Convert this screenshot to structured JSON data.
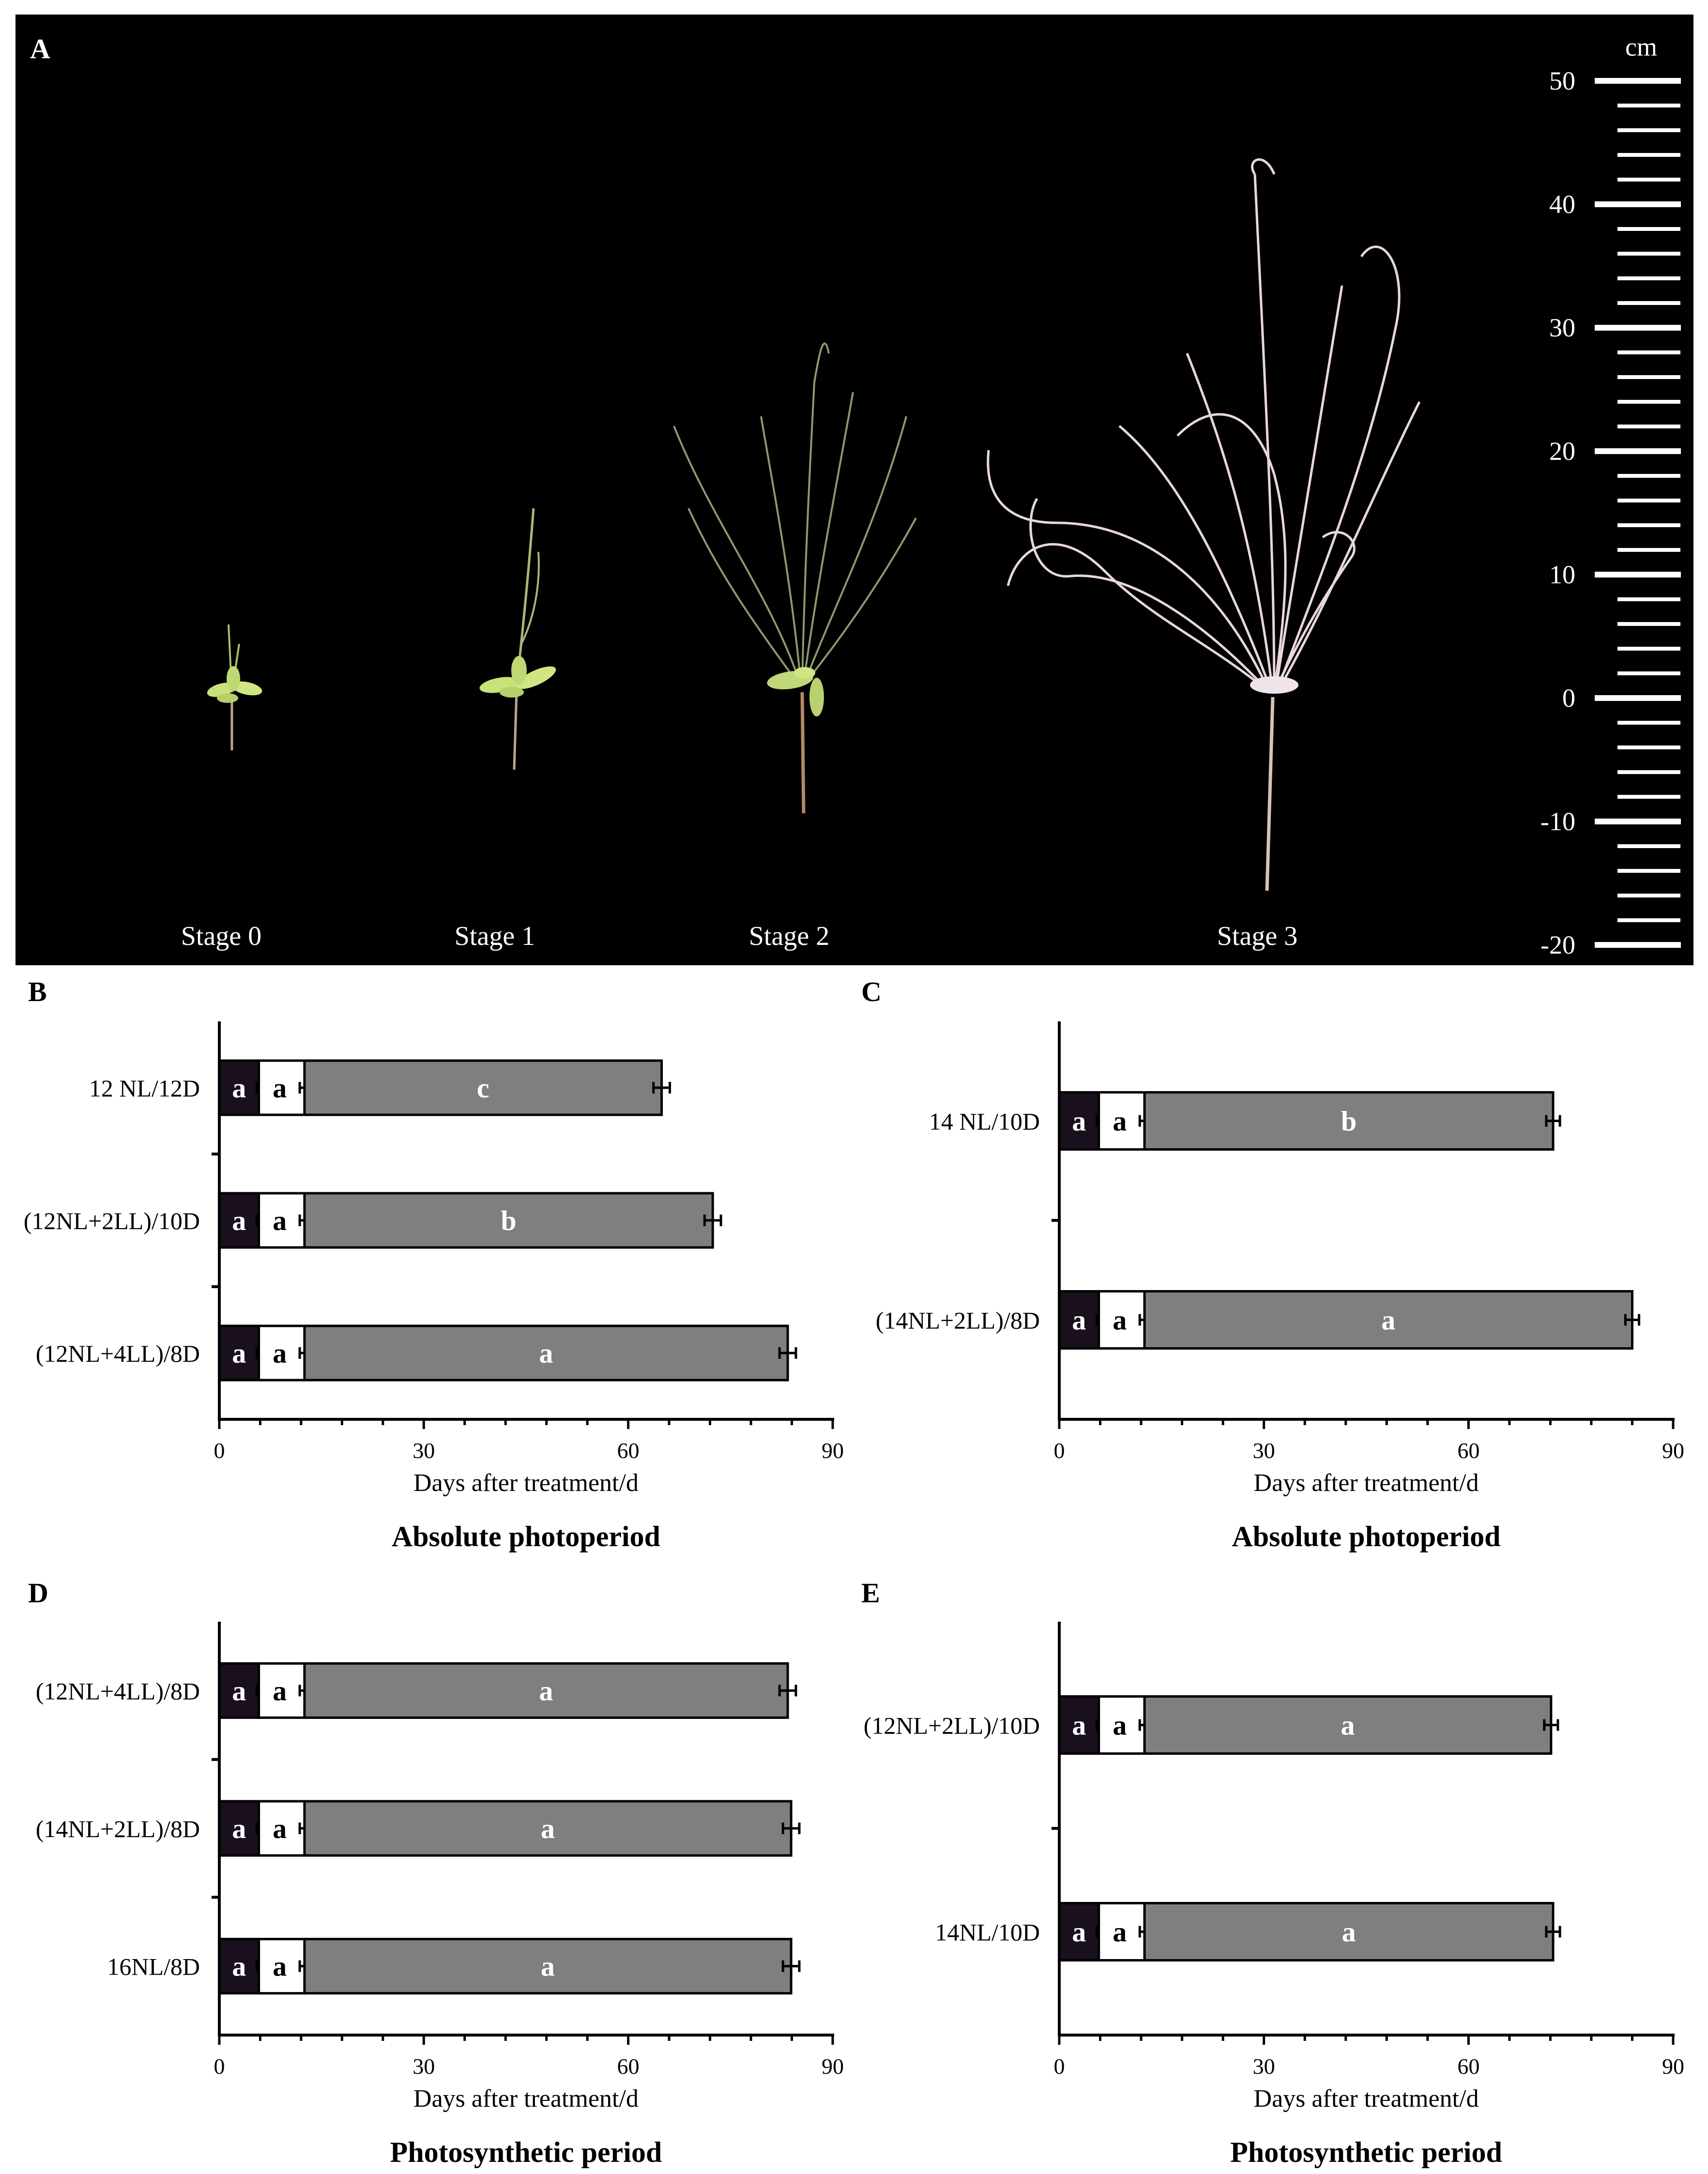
{
  "panel_a": {
    "letter": "A",
    "scale_unit": "cm",
    "scale_labels": [
      "50",
      "40",
      "30",
      "20",
      "10",
      "0",
      "-10",
      "-20"
    ],
    "scale_values": [
      50,
      40,
      30,
      20,
      10,
      0,
      -10,
      -20
    ],
    "stages": [
      "Stage 0",
      "Stage 1",
      "Stage 2",
      "Stage 3"
    ]
  },
  "colors": {
    "segment_1": "#1a0f1c",
    "segment_2": "#ffffff",
    "segment_3": "#7f7f7f",
    "label_text": "#ffffff",
    "axis": "#000000"
  },
  "chart_data": [
    {
      "panel": "B",
      "type": "bar",
      "orientation": "horizontal",
      "stacked": true,
      "title": "Absolute photoperiod",
      "xlabel": "Days after treatment/d",
      "xlim": [
        0,
        90
      ],
      "xticks": [
        0,
        30,
        60,
        90
      ],
      "categories": [
        "12 NL/12D",
        "(12NL+2LL)/10D",
        "(12NL+4LL)/8D"
      ],
      "series": [
        {
          "values": [
            5.8,
            5.8,
            5.8
          ],
          "errors": [
            0.3,
            0.3,
            0.3
          ],
          "letters": [
            "a",
            "a",
            "a"
          ]
        },
        {
          "values": [
            6.7,
            6.7,
            6.7
          ],
          "errors": [
            0.7,
            0.7,
            0.7
          ],
          "letters": [
            "a",
            "a",
            "a"
          ]
        },
        {
          "values": [
            52.4,
            59.9,
            70.9
          ],
          "errors": [
            1.2,
            1.2,
            1.2
          ],
          "letters": [
            "c",
            "b",
            "a"
          ]
        }
      ]
    },
    {
      "panel": "C",
      "type": "bar",
      "orientation": "horizontal",
      "stacked": true,
      "title": "Absolute photoperiod",
      "xlabel": "Days after treatment/d",
      "xlim": [
        0,
        90
      ],
      "xticks": [
        0,
        30,
        60,
        90
      ],
      "categories": [
        "14 NL/10D",
        "(14NL+2LL)/8D"
      ],
      "series": [
        {
          "values": [
            5.8,
            5.8
          ],
          "errors": [
            0.3,
            0.3
          ],
          "letters": [
            "a",
            "a"
          ]
        },
        {
          "values": [
            6.7,
            6.7
          ],
          "errors": [
            0.7,
            0.7
          ],
          "letters": [
            "a",
            "a"
          ]
        },
        {
          "values": [
            59.9,
            71.5
          ],
          "errors": [
            1.0,
            1.0
          ],
          "letters": [
            "b",
            "a"
          ]
        }
      ]
    },
    {
      "panel": "D",
      "type": "bar",
      "orientation": "horizontal",
      "stacked": true,
      "title": "Photosynthetic period",
      "xlabel": "Days after treatment/d",
      "xlim": [
        0,
        90
      ],
      "xticks": [
        0,
        30,
        60,
        90
      ],
      "categories": [
        "(12NL+4LL)/8D",
        "(14NL+2LL)/8D",
        "16NL/8D"
      ],
      "series": [
        {
          "values": [
            5.8,
            5.8,
            5.8
          ],
          "errors": [
            0.3,
            0.3,
            0.3
          ],
          "letters": [
            "a",
            "a",
            "a"
          ]
        },
        {
          "values": [
            6.7,
            6.7,
            6.7
          ],
          "errors": [
            0.7,
            0.7,
            0.7
          ],
          "letters": [
            "a",
            "a",
            "a"
          ]
        },
        {
          "values": [
            70.9,
            71.4,
            71.4
          ],
          "errors": [
            1.2,
            1.2,
            1.2
          ],
          "letters": [
            "a",
            "a",
            "a"
          ]
        }
      ]
    },
    {
      "panel": "E",
      "type": "bar",
      "orientation": "horizontal",
      "stacked": true,
      "title": "Photosynthetic period",
      "xlabel": "Days after treatment/d",
      "xlim": [
        0,
        90
      ],
      "xticks": [
        0,
        30,
        60,
        90
      ],
      "categories": [
        "(12NL+2LL)/10D",
        "14NL/10D"
      ],
      "series": [
        {
          "values": [
            5.8,
            5.8
          ],
          "errors": [
            0.3,
            0.3
          ],
          "letters": [
            "a",
            "a"
          ]
        },
        {
          "values": [
            6.7,
            6.7
          ],
          "errors": [
            0.7,
            0.7
          ],
          "letters": [
            "a",
            "a"
          ]
        },
        {
          "values": [
            59.6,
            59.9
          ],
          "errors": [
            1.0,
            1.0
          ],
          "letters": [
            "a",
            "a"
          ]
        }
      ]
    }
  ]
}
